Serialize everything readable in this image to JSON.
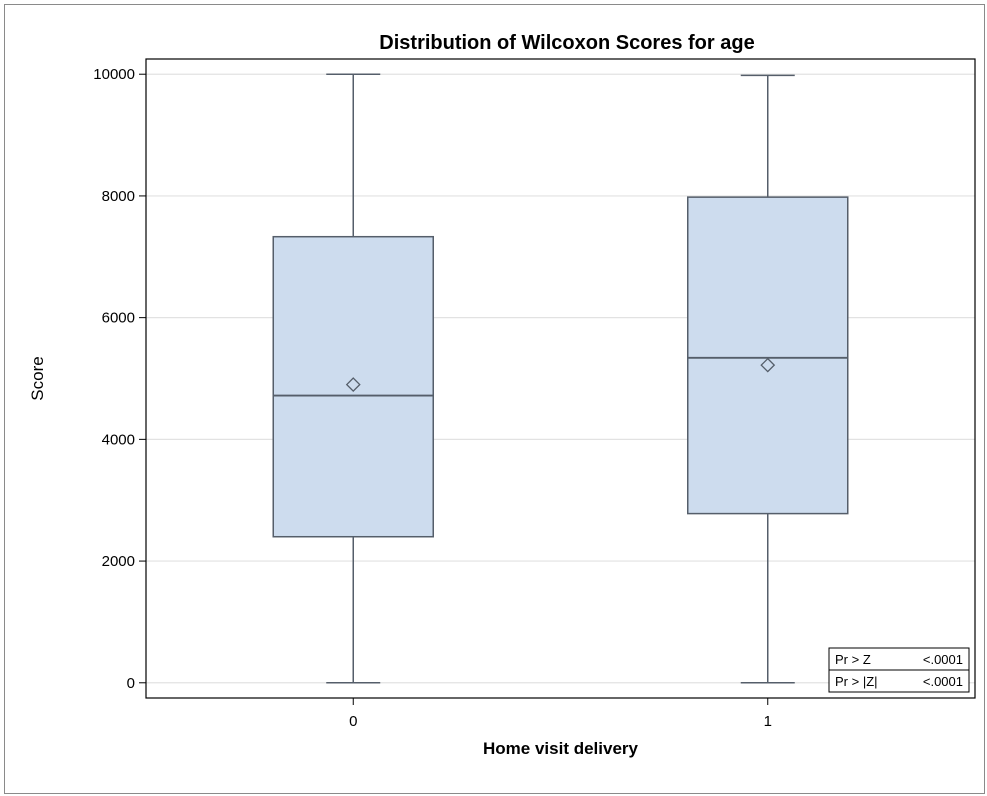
{
  "chart_data": {
    "type": "box",
    "title": "Distribution of Wilcoxon Scores for age",
    "xlabel": "Home visit delivery",
    "ylabel": "Score",
    "ylim": [
      -250,
      10250
    ],
    "yticks": [
      0,
      2000,
      4000,
      6000,
      8000,
      10000
    ],
    "grid": true,
    "categories": [
      "0",
      "1"
    ],
    "boxes": [
      {
        "category": "0",
        "min": 0,
        "q1": 2400,
        "median": 4720,
        "q3": 7330,
        "max": 10000,
        "mean": 4900
      },
      {
        "category": "1",
        "min": 0,
        "q1": 2780,
        "median": 5340,
        "q3": 7980,
        "max": 9980,
        "mean": 5220
      }
    ],
    "colors": {
      "box_fill": "#cddcee",
      "box_stroke": "#555e6a",
      "grid": "#e2e2e2",
      "axis": "#000000"
    },
    "stats_table": {
      "placement": "bottom-right",
      "rows": [
        {
          "label": "Pr > Z",
          "value": "<.0001"
        },
        {
          "label": "Pr > |Z|",
          "value": "<.0001"
        }
      ]
    }
  }
}
